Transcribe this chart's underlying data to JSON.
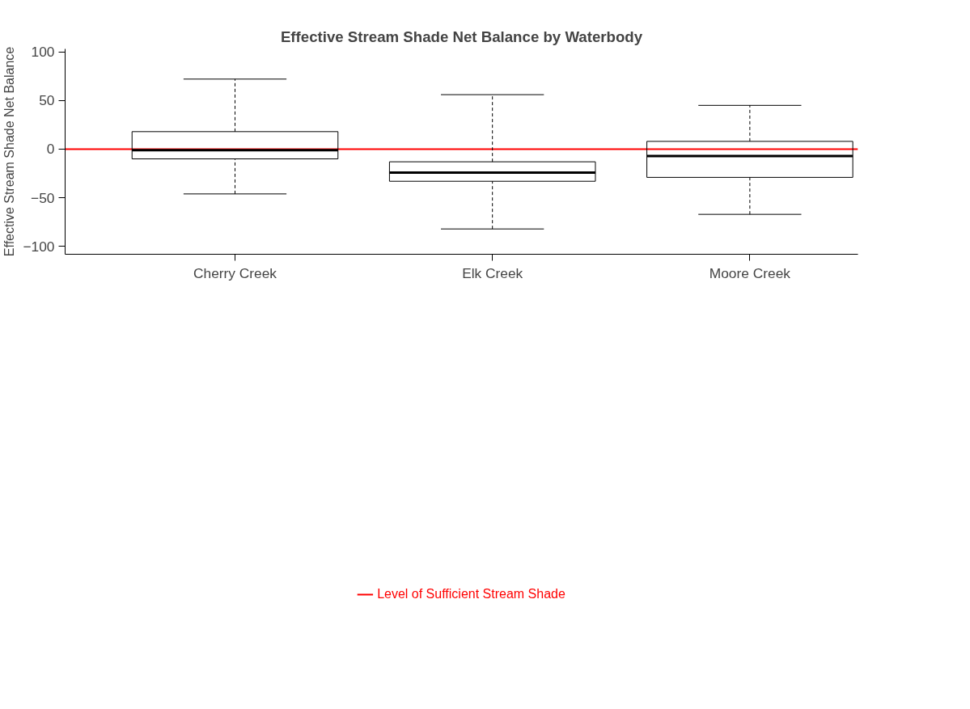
{
  "chart_data": {
    "type": "box",
    "title": "Effective Stream Shade Net Balance by Waterbody",
    "ylabel": "Effective Stream Shade Net Balance",
    "categories": [
      "Cherry Creek",
      "Elk Creek",
      "Moore Creek"
    ],
    "boxes": [
      {
        "low": -46,
        "q1": -10,
        "median": -1,
        "q3": 18,
        "high": 72
      },
      {
        "low": -82,
        "q1": -33,
        "median": -24,
        "q3": -13,
        "high": 56
      },
      {
        "low": -67,
        "q1": -29,
        "median": -7,
        "q3": 8,
        "high": 45
      }
    ],
    "ylim": [
      -108,
      103
    ],
    "yticks": [
      -100,
      -50,
      0,
      50,
      100
    ],
    "grid": false,
    "ref_lines": [
      {
        "axis": "y",
        "value": 0,
        "label": "Level of Sufficient Stream Shade",
        "color": "#ff0000"
      }
    ]
  }
}
